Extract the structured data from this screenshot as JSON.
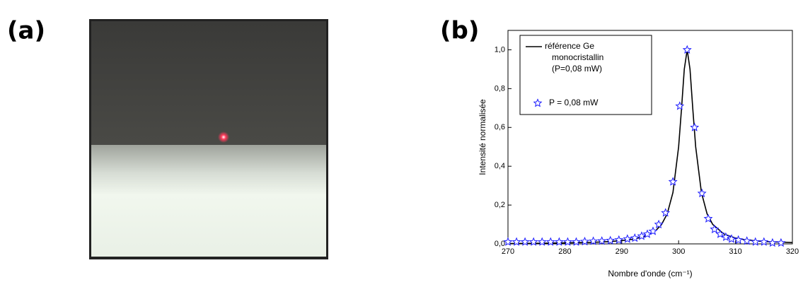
{
  "panel_labels": [
    "(a)",
    "(b)"
  ],
  "chart_data": {
    "type": "line",
    "x_label": "Nombre d'onde (cm⁻¹)",
    "y_label": "Intensité normalisée",
    "xlim": [
      270,
      320
    ],
    "xticks": [
      270,
      280,
      290,
      300,
      310,
      320
    ],
    "ylim": [
      0,
      1.1
    ],
    "yticks": [
      {
        "value": 0,
        "label": "0,0"
      },
      {
        "value": 0.2,
        "label": "0,2"
      },
      {
        "value": 0.4,
        "label": "0,4"
      },
      {
        "value": 0.6,
        "label": "0,6"
      },
      {
        "value": 0.8,
        "label": "0,8"
      },
      {
        "value": 1.0,
        "label": "1,0"
      }
    ],
    "series": [
      {
        "name": [
          "référence Ge",
          "monocristallin",
          "(P=0,08 mW)"
        ],
        "color": "#000000",
        "marker": "line",
        "x": [
          270,
          275,
          280,
          285,
          288,
          290,
          292,
          294,
          296,
          297,
          298,
          299,
          300,
          300.5,
          301,
          301.5,
          302,
          302.5,
          303,
          304,
          305,
          306,
          308,
          310,
          312,
          315,
          320
        ],
        "values": [
          0.002,
          0.003,
          0.005,
          0.008,
          0.012,
          0.017,
          0.024,
          0.038,
          0.069,
          0.1,
          0.155,
          0.265,
          0.5,
          0.692,
          0.9,
          1.0,
          0.9,
          0.692,
          0.5,
          0.265,
          0.155,
          0.1,
          0.05,
          0.03,
          0.02,
          0.012,
          0.007
        ]
      },
      {
        "name": [
          "P = 0,08 mW"
        ],
        "color": "#1a1aff",
        "marker": "star",
        "x": [
          270,
          271.5,
          273,
          274.5,
          276,
          277.5,
          279,
          280.5,
          282,
          283.5,
          285,
          286.5,
          288,
          289.5,
          291,
          292.3,
          293.5,
          294.5,
          295.5,
          296.5,
          297.7,
          299,
          300.2,
          301.5,
          302.8,
          304.1,
          305.2,
          306.3,
          307.3,
          308.3,
          309.3,
          310.5,
          312,
          313.5,
          315,
          316.5,
          318
        ],
        "values": [
          0.01,
          0.01,
          0.01,
          0.01,
          0.01,
          0.01,
          0.01,
          0.01,
          0.01,
          0.012,
          0.014,
          0.015,
          0.017,
          0.02,
          0.025,
          0.03,
          0.04,
          0.05,
          0.065,
          0.1,
          0.16,
          0.32,
          0.71,
          1.0,
          0.6,
          0.26,
          0.13,
          0.075,
          0.05,
          0.035,
          0.025,
          0.02,
          0.015,
          0.01,
          0.01,
          0.005,
          0.005
        ]
      }
    ]
  }
}
